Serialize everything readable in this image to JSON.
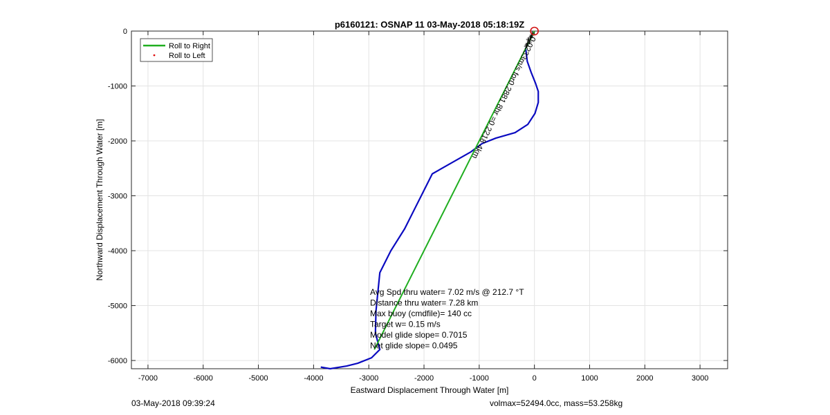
{
  "chart_data": {
    "type": "line",
    "title": "p6160121: OSNAP 11 03-May-2018 05:18:19Z",
    "xlabel": "Eastward Displacement Through Water [m]",
    "ylabel": "Northward Displacement Through Water [m]",
    "xlim": [
      -7300,
      3500
    ],
    "ylim": [
      -6150,
      0
    ],
    "xticks": [
      -7000,
      -6000,
      -5000,
      -4000,
      -3000,
      -2000,
      -1000,
      0,
      1000,
      2000,
      3000
    ],
    "yticks": [
      0,
      -1000,
      -2000,
      -3000,
      -4000,
      -5000,
      -6000
    ],
    "grid": true,
    "legend": {
      "placement": "top-left",
      "entries": [
        {
          "label": "Roll to Right",
          "color": "#1fae1f",
          "style": "line"
        },
        {
          "label": "Roll to Left",
          "color": "#e01010",
          "style": "dot"
        }
      ]
    },
    "series": [
      {
        "color": "#0a0ac0",
        "x": [
          -160,
          -130,
          -60,
          20,
          70,
          70,
          10,
          -120,
          -350,
          -700,
          -950,
          -1150,
          -1500,
          -1850,
          -2000,
          -2150,
          -2350,
          -2600,
          -2800,
          -2830,
          -2870,
          -2880,
          -2800,
          -2950,
          -3200,
          -3400,
          -3700,
          -3870
        ],
        "y": [
          -300,
          -550,
          -750,
          -950,
          -1100,
          -1300,
          -1500,
          -1700,
          -1850,
          -1950,
          -2050,
          -2200,
          -2400,
          -2600,
          -2900,
          -3200,
          -3600,
          -4000,
          -4400,
          -4700,
          -5100,
          -5500,
          -5800,
          -5950,
          -6050,
          -6100,
          -6150,
          -6120
        ]
      },
      {
        "name": "Roll to Right",
        "color": "#1fae1f",
        "x": [
          0,
          -2900
        ],
        "y": [
          0,
          -5800
        ]
      }
    ],
    "annotations": [
      {
        "text": "Avg Spd thru water=  7.02 m/s @ 212.7 °T"
      },
      {
        "text": "Distance thru water=  7.28 km"
      },
      {
        "text": "Max buoy (cmdfile)= 140 cc"
      },
      {
        "text": "Target w= 0.15 m/s"
      },
      {
        "text": "Model glide slope= 0.7015"
      },
      {
        "text": "Net glide slope= 0.0495"
      }
    ],
    "rotated_annotation": "0.0233m/s for0.2881 8hr =0.2218 4km",
    "start_marker": {
      "x": 0,
      "y": 0,
      "color": "#d01010"
    }
  },
  "footer": {
    "left": "03-May-2018 09:39:24",
    "right": "volmax=52494.0cc, mass=53.258kg"
  }
}
